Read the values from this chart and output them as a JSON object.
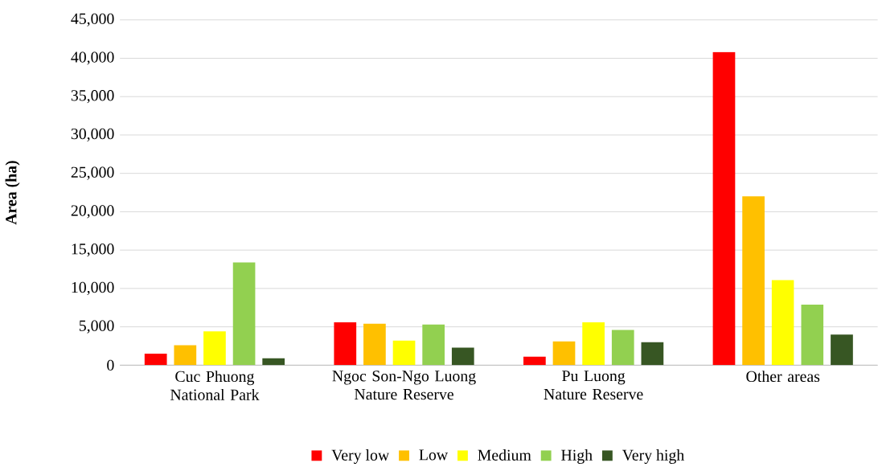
{
  "chart_data": {
    "type": "bar",
    "ylabel": "Area (ha)",
    "categories": [
      "Cuc Phuong National Park",
      "Ngoc Son-Ngo Luong Nature Reserve",
      "Pu Luong Nature Reserve",
      "Other areas"
    ],
    "series": [
      {
        "name": "Very low",
        "color": "#ff0000",
        "values": [
          1500,
          5600,
          1100,
          40800
        ]
      },
      {
        "name": "Low",
        "color": "#ffc000",
        "values": [
          2600,
          5400,
          3100,
          22000
        ]
      },
      {
        "name": "Medium",
        "color": "#ffff00",
        "values": [
          4400,
          3200,
          5600,
          11100
        ]
      },
      {
        "name": "High",
        "color": "#92d050",
        "values": [
          13400,
          5300,
          4600,
          7900
        ]
      },
      {
        "name": "Very high",
        "color": "#375623",
        "values": [
          900,
          2300,
          3000,
          4000
        ]
      }
    ],
    "ylim": [
      0,
      45000
    ],
    "yticks": [
      0,
      {
        "value": 5000,
        "label": "5,000"
      },
      {
        "value": 10000,
        "label": "10,000"
      },
      {
        "value": 15000,
        "label": "15,000"
      },
      {
        "value": 20000,
        "label": "20,000"
      },
      {
        "value": 25000,
        "label": "25,000"
      },
      {
        "value": 30000,
        "label": "30,000"
      },
      {
        "value": 35000,
        "label": "35,000"
      },
      {
        "value": 40000,
        "label": "40,000"
      },
      {
        "value": 45000,
        "label": "45,000"
      }
    ],
    "grid": "y",
    "legend": "bottom"
  }
}
